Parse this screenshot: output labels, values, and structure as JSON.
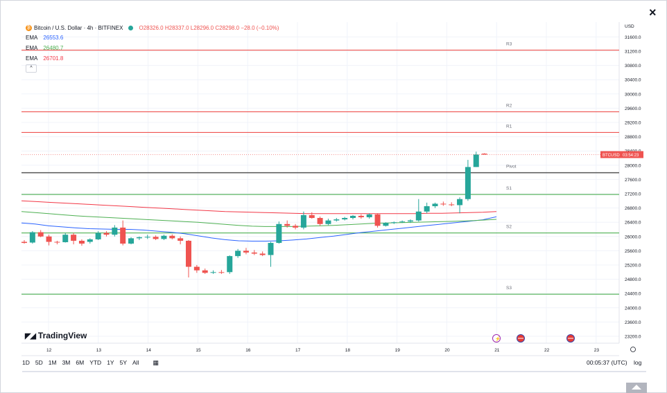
{
  "close_label": "×",
  "header": {
    "coin_icon": "bitcoin-icon",
    "symbol": "Bitcoin / U.S. Dollar · 4h · BITFINEX",
    "ohlc": "O28326.0 H28337.0 L28296.0 C28298.0 −28.0 (−0.10%)",
    "ema": [
      {
        "label": "EMA",
        "value": "26553.6",
        "color": "#2962ff"
      },
      {
        "label": "EMA",
        "value": "26480.7",
        "color": "#4caf50"
      },
      {
        "label": "EMA",
        "value": "26701.8",
        "color": "#f23645"
      }
    ],
    "collapse_label": "^"
  },
  "logo": "TradingView",
  "currency": "USD",
  "price_tag": {
    "symbol": "BTCUSD",
    "countdown": "03:54:23",
    "price": 28298
  },
  "toolbar": {
    "timeframes": [
      "1D",
      "5D",
      "1M",
      "3M",
      "6M",
      "YTD",
      "1Y",
      "5Y",
      "All"
    ],
    "clock": "00:05:37 (UTC)",
    "log": "log",
    "reset_icon": "settings-reset-icon"
  },
  "chart_data": {
    "type": "candlestick",
    "title": "Bitcoin / U.S. Dollar · 4h · BITFINEX",
    "y_range": [
      22900,
      31950
    ],
    "y_ticks": [
      23200,
      23600,
      24000,
      24400,
      24800,
      25200,
      25600,
      26000,
      26400,
      26800,
      27200,
      27600,
      28000,
      28400,
      28800,
      29200,
      29600,
      30000,
      30400,
      30800,
      31200,
      31600
    ],
    "x_ticks": [
      "12",
      "13",
      "14",
      "15",
      "16",
      "17",
      "18",
      "19",
      "20",
      "21",
      "22",
      "23"
    ],
    "levels": [
      {
        "name": "R3",
        "value": 31230,
        "color": "#ef5350"
      },
      {
        "name": "R2",
        "value": 29500,
        "color": "#ef5350"
      },
      {
        "name": "R1",
        "value": 28920,
        "color": "#ef5350"
      },
      {
        "name": "Pivot",
        "value": 27790,
        "color": "#555555"
      },
      {
        "name": "S1",
        "value": 27180,
        "color": "#4caf50"
      },
      {
        "name": "S2",
        "value": 26100,
        "color": "#4caf50"
      },
      {
        "name": "S3",
        "value": 24380,
        "color": "#4caf50"
      }
    ],
    "candles": [
      {
        "o": 25850,
        "h": 25900,
        "l": 25800,
        "c": 25820
      },
      {
        "o": 25830,
        "h": 26150,
        "l": 25800,
        "c": 26120
      },
      {
        "o": 26120,
        "h": 26180,
        "l": 25980,
        "c": 26000
      },
      {
        "o": 26000,
        "h": 26050,
        "l": 25750,
        "c": 25850
      },
      {
        "o": 25850,
        "h": 25880,
        "l": 25780,
        "c": 25840
      },
      {
        "o": 25840,
        "h": 26100,
        "l": 25830,
        "c": 26050
      },
      {
        "o": 26050,
        "h": 26100,
        "l": 25780,
        "c": 25880
      },
      {
        "o": 25880,
        "h": 25920,
        "l": 25740,
        "c": 25800
      },
      {
        "o": 25850,
        "h": 25950,
        "l": 25800,
        "c": 25920
      },
      {
        "o": 25920,
        "h": 26150,
        "l": 25900,
        "c": 26100
      },
      {
        "o": 26100,
        "h": 26150,
        "l": 26000,
        "c": 26050
      },
      {
        "o": 26050,
        "h": 26320,
        "l": 26000,
        "c": 26250
      },
      {
        "o": 26250,
        "h": 26450,
        "l": 25750,
        "c": 25800
      },
      {
        "o": 25800,
        "h": 25980,
        "l": 25780,
        "c": 25950
      },
      {
        "o": 25950,
        "h": 26000,
        "l": 25900,
        "c": 25980
      },
      {
        "o": 25980,
        "h": 26050,
        "l": 25930,
        "c": 25990
      },
      {
        "o": 25990,
        "h": 26030,
        "l": 25900,
        "c": 25930
      },
      {
        "o": 25930,
        "h": 26050,
        "l": 25900,
        "c": 26020
      },
      {
        "o": 26020,
        "h": 26060,
        "l": 25920,
        "c": 25950
      },
      {
        "o": 25950,
        "h": 26000,
        "l": 25780,
        "c": 25880
      },
      {
        "o": 25880,
        "h": 25900,
        "l": 24850,
        "c": 25150
      },
      {
        "o": 25150,
        "h": 25200,
        "l": 24980,
        "c": 25050
      },
      {
        "o": 25050,
        "h": 25100,
        "l": 24950,
        "c": 24980
      },
      {
        "o": 24980,
        "h": 25050,
        "l": 24950,
        "c": 25000
      },
      {
        "o": 25000,
        "h": 25060,
        "l": 24950,
        "c": 24980
      },
      {
        "o": 25000,
        "h": 25470,
        "l": 24950,
        "c": 25450
      },
      {
        "o": 25450,
        "h": 25650,
        "l": 25400,
        "c": 25600
      },
      {
        "o": 25600,
        "h": 25680,
        "l": 25500,
        "c": 25550
      },
      {
        "o": 25550,
        "h": 25620,
        "l": 25480,
        "c": 25520
      },
      {
        "o": 25520,
        "h": 25580,
        "l": 25450,
        "c": 25480
      },
      {
        "o": 25480,
        "h": 25850,
        "l": 25150,
        "c": 25820
      },
      {
        "o": 25820,
        "h": 26420,
        "l": 25800,
        "c": 26350
      },
      {
        "o": 26350,
        "h": 26450,
        "l": 26250,
        "c": 26300
      },
      {
        "o": 26300,
        "h": 26350,
        "l": 26200,
        "c": 26250
      },
      {
        "o": 26250,
        "h": 26700,
        "l": 26200,
        "c": 26600
      },
      {
        "o": 26600,
        "h": 26680,
        "l": 26500,
        "c": 26520
      },
      {
        "o": 26520,
        "h": 26560,
        "l": 26300,
        "c": 26350
      },
      {
        "o": 26350,
        "h": 26500,
        "l": 26320,
        "c": 26450
      },
      {
        "o": 26450,
        "h": 26520,
        "l": 26420,
        "c": 26480
      },
      {
        "o": 26480,
        "h": 26550,
        "l": 26450,
        "c": 26520
      },
      {
        "o": 26520,
        "h": 26600,
        "l": 26480,
        "c": 26580
      },
      {
        "o": 26580,
        "h": 26620,
        "l": 26500,
        "c": 26540
      },
      {
        "o": 26540,
        "h": 26650,
        "l": 26500,
        "c": 26620
      },
      {
        "o": 26620,
        "h": 26650,
        "l": 26250,
        "c": 26300
      },
      {
        "o": 26300,
        "h": 26400,
        "l": 26280,
        "c": 26380
      },
      {
        "o": 26380,
        "h": 26420,
        "l": 26350,
        "c": 26400
      },
      {
        "o": 26400,
        "h": 26450,
        "l": 26380,
        "c": 26420
      },
      {
        "o": 26420,
        "h": 26480,
        "l": 26380,
        "c": 26450
      },
      {
        "o": 26450,
        "h": 27050,
        "l": 26420,
        "c": 26700
      },
      {
        "o": 26700,
        "h": 26950,
        "l": 26650,
        "c": 26850
      },
      {
        "o": 26850,
        "h": 26950,
        "l": 26800,
        "c": 26920
      },
      {
        "o": 26920,
        "h": 26980,
        "l": 26860,
        "c": 26900
      },
      {
        "o": 26900,
        "h": 26960,
        "l": 26850,
        "c": 26880
      },
      {
        "o": 26880,
        "h": 27100,
        "l": 26650,
        "c": 27050
      },
      {
        "o": 27050,
        "h": 28150,
        "l": 27000,
        "c": 27950
      },
      {
        "o": 27950,
        "h": 28380,
        "l": 27950,
        "c": 28300
      },
      {
        "o": 28326,
        "h": 28337,
        "l": 28296,
        "c": 28298
      }
    ],
    "ema_series": [
      {
        "name": "EMA",
        "value": 26553.6,
        "color": "#2962ff",
        "values": [
          26380,
          26350,
          26300,
          26270,
          26240,
          26220,
          26210,
          26200,
          26200,
          26180,
          26150,
          26120,
          26080,
          26020,
          25960,
          25910,
          25880,
          25870,
          25870,
          25880,
          25900,
          25930,
          25970,
          26010,
          26060,
          26110,
          26150,
          26190,
          26230,
          26270,
          26310,
          26350,
          26390,
          26430,
          26470,
          26553.6
        ]
      },
      {
        "name": "EMA",
        "value": 26480.7,
        "color": "#4caf50",
        "values": [
          26700,
          26670,
          26640,
          26610,
          26580,
          26560,
          26540,
          26520,
          26500,
          26480,
          26460,
          26440,
          26420,
          26400,
          26370,
          26340,
          26310,
          26290,
          26280,
          26280,
          26280,
          26290,
          26300,
          26310,
          26330,
          26350,
          26370,
          26380,
          26390,
          26400,
          26410,
          26420,
          26430,
          26440,
          26460,
          26480.7
        ]
      },
      {
        "name": "EMA",
        "value": 26701.8,
        "color": "#f23645",
        "values": [
          27000,
          26980,
          26960,
          26940,
          26920,
          26900,
          26880,
          26860,
          26840,
          26820,
          26800,
          26780,
          26760,
          26740,
          26720,
          26700,
          26690,
          26680,
          26670,
          26660,
          26650,
          26640,
          26640,
          26640,
          26640,
          26640,
          26640,
          26640,
          26640,
          26640,
          26650,
          26650,
          26660,
          26670,
          26680,
          26701.8
        ]
      }
    ]
  }
}
